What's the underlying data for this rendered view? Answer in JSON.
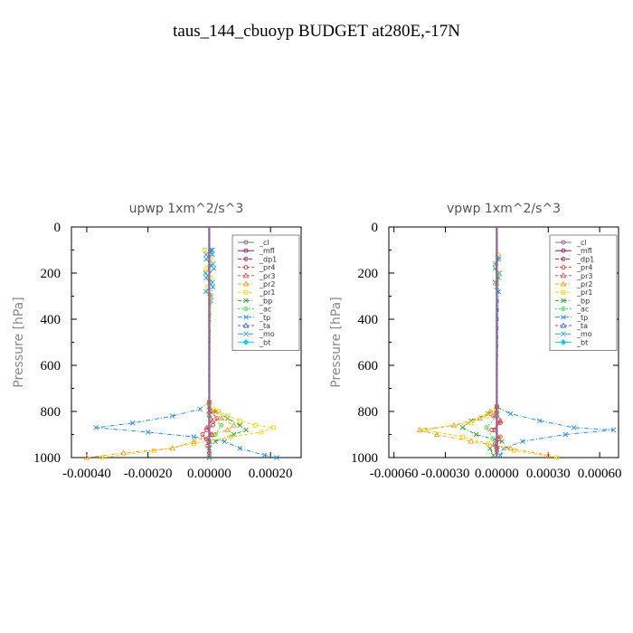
{
  "figure": {
    "title": "taus_144_cbuoyp  BUDGET at280E,-17N"
  },
  "colors": {
    "cl": "#8b6b9b",
    "mfl": "#7b1f7b",
    "dp1": "#a0204a",
    "pr4": "#e23a3a",
    "pr3": "#e05050",
    "pr2": "#f0a020",
    "pr1": "#f2d21f",
    "bp": "#2ea12e",
    "ac": "#40d040",
    "tp": "#2b8fd6",
    "ta": "#4a5bd8",
    "mo": "#2aa3c0",
    "bt": "#20c8e0"
  },
  "chart_data": [
    {
      "type": "line",
      "title": "upwp   1xm^2/s^3",
      "ylabel": "Pressure  [hPa]",
      "xlim": [
        -0.00045,
        0.0003
      ],
      "ylim": [
        1000,
        0
      ],
      "yticks": [
        0,
        200,
        400,
        600,
        800,
        1000
      ],
      "yticklabels": [
        "0",
        "200",
        "400",
        "600",
        "800",
        "1000"
      ],
      "xticks": [
        -0.0004,
        -0.0002,
        0,
        0.0002
      ],
      "xticklabels": [
        "-0.00040",
        "-0.00020",
        "0.00000",
        "0.00020"
      ],
      "legend": [
        "_cl",
        "_mfl",
        "_dp1",
        "_pr4",
        "_pr3",
        "_pr2",
        "_pr1",
        "_bp",
        "_ac",
        "_tp",
        "_ta",
        "_mo",
        "_bt"
      ],
      "legend_position": "top-right",
      "series": [
        {
          "name": "_cl",
          "y": [
            0,
            1000
          ],
          "x": [
            0,
            0
          ]
        },
        {
          "name": "_mfl",
          "y": [
            0,
            1000
          ],
          "x": [
            0,
            0
          ]
        },
        {
          "name": "_dp1",
          "y": [
            0,
            1000
          ],
          "x": [
            0,
            0
          ]
        },
        {
          "name": "_pr4",
          "y": [
            760,
            800,
            830,
            860,
            880,
            900,
            920,
            950,
            980
          ],
          "x": [
            0,
            5e-06,
            2.5e-05,
            1.2e-05,
            -8e-06,
            -2.2e-05,
            -1e-05,
            -5e-06,
            0
          ]
        },
        {
          "name": "_pr3",
          "y": [
            800,
            840,
            870,
            900,
            930
          ],
          "x": [
            0,
            1e-05,
            -8e-06,
            8e-06,
            0
          ]
        },
        {
          "name": "_pr2",
          "y": [
            780,
            800,
            830,
            860,
            880,
            900,
            930,
            960,
            980,
            1000
          ],
          "x": [
            0,
            2e-05,
            4e-05,
            8e-05,
            6e-05,
            1e-05,
            -5e-05,
            -0.00012,
            -0.00028,
            -0.0004
          ]
        },
        {
          "name": "_pr1",
          "y": [
            100,
            140,
            180,
            220,
            260,
            300,
            760,
            800,
            820,
            840,
            860,
            870,
            890,
            910,
            940,
            970,
            1000
          ],
          "x": [
            -1.5e-05,
            5e-06,
            -1e-05,
            5e-06,
            -5e-06,
            5e-06,
            0,
            3e-05,
            6e-05,
            0.0001,
            0.00015,
            0.00021,
            0.00017,
            7e-05,
            -5e-05,
            -0.00018,
            -0.00035
          ]
        },
        {
          "name": "_bp",
          "y": [
            780,
            800,
            830,
            860,
            880,
            900,
            930,
            960,
            1000
          ],
          "x": [
            0,
            2e-05,
            6e-05,
            0.0001,
            0.00012,
            8e-05,
            2e-05,
            0,
            0
          ]
        },
        {
          "name": "_ac",
          "y": [
            820,
            860,
            900,
            930
          ],
          "x": [
            0,
            4e-05,
            2e-05,
            0
          ]
        },
        {
          "name": "_tp",
          "y": [
            100,
            120,
            140,
            180,
            220,
            260,
            300,
            760,
            790,
            820,
            850,
            870,
            890,
            910,
            930,
            960,
            990,
            1000
          ],
          "x": [
            5e-06,
            1e-05,
            -1e-05,
            1.5e-05,
            -1e-05,
            1.2e-05,
            5e-06,
            0,
            -3e-05,
            -0.00012,
            -0.00025,
            -0.00037,
            -0.0002,
            -5e-05,
            5e-05,
            0.0001,
            0.00018,
            0.00022
          ]
        },
        {
          "name": "_ta",
          "y": [
            0,
            1000
          ],
          "x": [
            0,
            0
          ]
        },
        {
          "name": "_mo",
          "y": [
            100,
            120,
            160,
            200,
            240,
            280,
            320
          ],
          "x": [
            1e-05,
            -1e-05,
            1.2e-05,
            -1.2e-05,
            1e-05,
            -1e-05,
            5e-06
          ]
        },
        {
          "name": "_bt",
          "y": [
            0,
            1000
          ],
          "x": [
            0,
            0
          ]
        }
      ]
    },
    {
      "type": "line",
      "title": "vpwp   1xm^2/s^3",
      "ylabel": "Pressure  [hPa]",
      "xlim": [
        -0.00063,
        0.00071
      ],
      "ylim": [
        1000,
        0
      ],
      "yticks": [
        0,
        200,
        400,
        600,
        800,
        1000
      ],
      "yticklabels": [
        "0",
        "200",
        "400",
        "600",
        "800",
        "1000"
      ],
      "xticks": [
        -0.0006,
        -0.0003,
        0,
        0.0003,
        0.0006
      ],
      "xticklabels": [
        "-0.00060",
        "-0.00030",
        "0.00000",
        "0.00030",
        "0.00060"
      ],
      "legend": [
        "_cl",
        "_mfl",
        "_dp1",
        "_pr4",
        "_pr3",
        "_pr2",
        "_pr1",
        "_bp",
        "_ac",
        "_tp",
        "_ta",
        "_mo",
        "_bt"
      ],
      "legend_position": "top-right",
      "series": [
        {
          "name": "_cl",
          "y": [
            0,
            1000
          ],
          "x": [
            0,
            0
          ]
        },
        {
          "name": "_mfl",
          "y": [
            0,
            1000
          ],
          "x": [
            0,
            0
          ]
        },
        {
          "name": "_dp1",
          "y": [
            0,
            1000
          ],
          "x": [
            0,
            0
          ]
        },
        {
          "name": "_pr4",
          "y": [
            780,
            820,
            850,
            880,
            910,
            940,
            970
          ],
          "x": [
            0,
            -2e-05,
            2e-05,
            -3e-05,
            2e-05,
            -1e-05,
            0
          ]
        },
        {
          "name": "_pr3",
          "y": [
            800,
            840,
            880,
            920,
            950
          ],
          "x": [
            0,
            2e-05,
            -1e-05,
            1e-05,
            0
          ]
        },
        {
          "name": "_pr2",
          "y": [
            780,
            800,
            830,
            860,
            880,
            900,
            930,
            960,
            990
          ],
          "x": [
            0,
            -4e-05,
            -0.0001,
            -0.00025,
            -0.00045,
            -0.00035,
            -0.00015,
            8e-05,
            0.0003
          ]
        },
        {
          "name": "_pr1",
          "y": [
            120,
            160,
            200,
            240,
            790,
            820,
            850,
            880,
            910,
            940,
            970,
            1000
          ],
          "x": [
            5e-06,
            -5e-06,
            5e-06,
            0,
            0,
            -6e-05,
            -0.00015,
            -0.00042,
            -0.0002,
            -5e-05,
            0.0001,
            0.00035
          ]
        },
        {
          "name": "_bp",
          "y": [
            780,
            810,
            840,
            870,
            900,
            930,
            960,
            990
          ],
          "x": [
            0,
            -5e-05,
            -0.00015,
            -0.0002,
            -0.00012,
            3e-05,
            -4e-05,
            -2e-05
          ]
        },
        {
          "name": "_ac",
          "y": [
            820,
            870,
            920,
            960
          ],
          "x": [
            0,
            -6e-05,
            -2e-05,
            0
          ]
        },
        {
          "name": "_tp",
          "y": [
            130,
            160,
            200,
            240,
            280,
            780,
            810,
            840,
            870,
            880,
            900,
            930,
            960,
            990
          ],
          "x": [
            1e-05,
            -1e-05,
            1.5e-05,
            -1e-05,
            1e-05,
            0,
            8e-05,
            0.00025,
            0.00045,
            0.00068,
            0.0004,
            0.00015,
            4e-05,
            2e-05
          ]
        },
        {
          "name": "_ta",
          "y": [
            0,
            1000
          ],
          "x": [
            0,
            0
          ]
        },
        {
          "name": "_mo",
          "y": [
            140,
            180,
            220,
            260
          ],
          "x": [
            1e-05,
            -1e-05,
            1e-05,
            0
          ]
        },
        {
          "name": "_bt",
          "y": [
            0,
            1000
          ],
          "x": [
            0,
            0
          ]
        }
      ]
    }
  ]
}
